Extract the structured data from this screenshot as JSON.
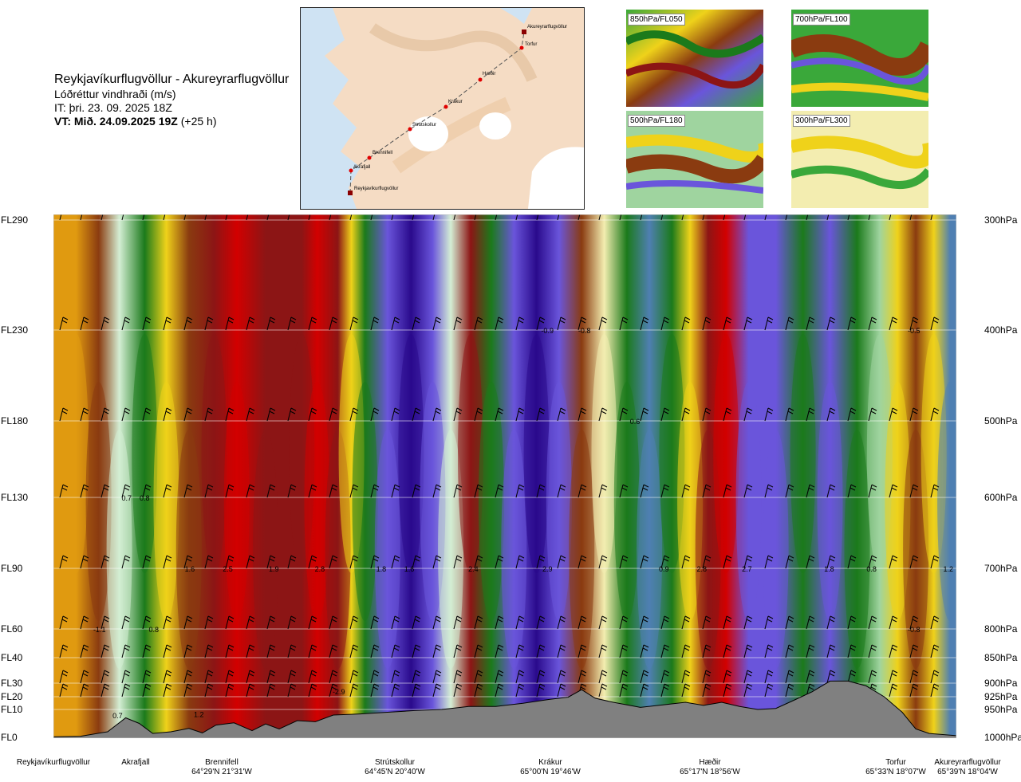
{
  "header": {
    "route": "Reykjavíkurflugvöllur - Akureyrarflugvöllur",
    "variable": "Lóðréttur vindhraði (m/s)",
    "issue_time": "IT: þri. 23. 09. 2025 18Z",
    "valid_prefix": "VT: Mið. 24.09.2025 19Z",
    "valid_suffix": "(+25 h)"
  },
  "map": {
    "stations": [
      "Akureyrarflugvöllur",
      "Torfur",
      "Hæðir",
      "Krákur",
      "Strútskollur",
      "Brennifell",
      "Akrafjall",
      "Reykjavíkurflugvöllur"
    ]
  },
  "thumbnails": [
    "850hPa/FL050",
    "700hPa/FL100",
    "500hPa/FL180",
    "300hPa/FL300"
  ],
  "colors": {
    "dark_navy": "#2a0a8c",
    "blue_violet": "#6a55db",
    "steel_blue": "#4f7fb2",
    "dark_green": "#1b7a1b",
    "green": "#3aa83a",
    "light_green": "#9fd49f",
    "pale_green": "#d4eed4",
    "pale_yellow": "#f3edb0",
    "yellow": "#efd21a",
    "orange": "#e09a10",
    "brown": "#8a3b10",
    "dark_red": "#8c1515",
    "red": "#d20000",
    "terrain": "#808080"
  },
  "chart_data": {
    "type": "heatmap",
    "title": "Lóðréttur vindhraði (m/s)",
    "left_axis_labels": [
      "FL290",
      "FL230",
      "FL180",
      "FL130",
      "FL90",
      "FL60",
      "FL40",
      "FL30",
      "FL20",
      "FL10",
      "FL0"
    ],
    "right_axis_labels": [
      "300hPa",
      "400hPa",
      "500hPa",
      "600hPa",
      "700hPa",
      "800hPa",
      "850hPa",
      "900hPa",
      "925hPa",
      "950hPa",
      "1000hPa"
    ],
    "levels_hpa": [
      300,
      400,
      500,
      600,
      700,
      800,
      850,
      900,
      925,
      950,
      1000
    ],
    "route_distance_range": [
      0,
      100
    ],
    "locations": [
      {
        "name": "Reykjavíkurflugvöllur",
        "coord": "",
        "pos": 0
      },
      {
        "name": "Akrafjall",
        "coord": "",
        "pos": 8.3
      },
      {
        "name": "Brennifell",
        "coord": "64°29'N 21°31'W",
        "pos": 19.6
      },
      {
        "name": "Strútskollur",
        "coord": "64°45'N 20°40'W",
        "pos": 37.5
      },
      {
        "name": "Krákur",
        "coord": "65°00'N 19°46'W",
        "pos": 57.4
      },
      {
        "name": "Hæðir",
        "coord": "65°17'N 18°56'W",
        "pos": 76.5
      },
      {
        "name": "Torfur",
        "coord": "65°33'N 18°07'W",
        "pos": 96.5
      },
      {
        "name": "Akureyrarflugvöllur",
        "coord": "65°39'N 18°04'W",
        "pos": 100
      }
    ],
    "annotations": [
      {
        "text": "-0.9",
        "pos": 54.7,
        "hpa": 400
      },
      {
        "text": "-0.8",
        "pos": 58.8,
        "hpa": 400
      },
      {
        "text": "-0.5",
        "pos": 95.3,
        "hpa": 400
      },
      {
        "text": "0.6",
        "pos": 64.4,
        "hpa": 500
      },
      {
        "text": "0.7",
        "pos": 8.1,
        "hpa": 600
      },
      {
        "text": "0.8",
        "pos": 10.1,
        "hpa": 600
      },
      {
        "text": "1.6",
        "pos": 15.1,
        "hpa": 700
      },
      {
        "text": "2.5",
        "pos": 19.3,
        "hpa": 700
      },
      {
        "text": "1.9",
        "pos": 24.4,
        "hpa": 700
      },
      {
        "text": "2.8",
        "pos": 29.5,
        "hpa": 700
      },
      {
        "text": "1.8",
        "pos": 36.3,
        "hpa": 700
      },
      {
        "text": "1.6",
        "pos": 39.4,
        "hpa": 700
      },
      {
        "text": "2.4",
        "pos": 46.5,
        "hpa": 700
      },
      {
        "text": "2.9",
        "pos": 54.7,
        "hpa": 700
      },
      {
        "text": "0.9",
        "pos": 67.6,
        "hpa": 700
      },
      {
        "text": "2.8",
        "pos": 71.8,
        "hpa": 700
      },
      {
        "text": "2.7",
        "pos": 76.8,
        "hpa": 700
      },
      {
        "text": "1.8",
        "pos": 85.9,
        "hpa": 700
      },
      {
        "text": "0.8",
        "pos": 90.6,
        "hpa": 700
      },
      {
        "text": "1.2",
        "pos": 99.1,
        "hpa": 700
      },
      {
        "text": "-1.1",
        "pos": 5.1,
        "hpa": 800
      },
      {
        "text": "0.8",
        "pos": 11.1,
        "hpa": 800
      },
      {
        "text": "-0.8",
        "pos": 95.3,
        "hpa": 800
      },
      {
        "text": "-2.9",
        "pos": 31.6,
        "hpa": 915
      },
      {
        "text": "0.7",
        "pos": 7.1,
        "hpa": 960
      },
      {
        "text": "1.2",
        "pos": 16.1,
        "hpa": 958
      }
    ],
    "color_bands": [
      {
        "pos": 2.5,
        "color": "#e09a10"
      },
      {
        "pos": 5.0,
        "color": "#8a3b10"
      },
      {
        "pos": 7.3,
        "color": "#d4eed4"
      },
      {
        "pos": 10.1,
        "color": "#1b7a1b"
      },
      {
        "pos": 12.5,
        "color": "#efd21a"
      },
      {
        "pos": 15.0,
        "color": "#8a3b10"
      },
      {
        "pos": 17.8,
        "color": "#8c1515"
      },
      {
        "pos": 20.3,
        "color": "#d20000"
      },
      {
        "pos": 23.5,
        "color": "#8c1515"
      },
      {
        "pos": 27.5,
        "color": "#8c1515"
      },
      {
        "pos": 29.2,
        "color": "#d20000"
      },
      {
        "pos": 31.5,
        "color": "#8c1515"
      },
      {
        "pos": 33.0,
        "color": "#efd21a"
      },
      {
        "pos": 34.5,
        "color": "#1b7a1b"
      },
      {
        "pos": 37.0,
        "color": "#6a55db"
      },
      {
        "pos": 39.6,
        "color": "#2a0a8c"
      },
      {
        "pos": 42.0,
        "color": "#6a55db"
      },
      {
        "pos": 44.0,
        "color": "#d4eed4"
      },
      {
        "pos": 46.2,
        "color": "#8c1515"
      },
      {
        "pos": 48.5,
        "color": "#1b7a1b"
      },
      {
        "pos": 51.0,
        "color": "#6a55db"
      },
      {
        "pos": 53.5,
        "color": "#2a0a8c"
      },
      {
        "pos": 56.0,
        "color": "#6a55db"
      },
      {
        "pos": 58.5,
        "color": "#8a3b10"
      },
      {
        "pos": 61.0,
        "color": "#f3edb0"
      },
      {
        "pos": 63.5,
        "color": "#1b7a1b"
      },
      {
        "pos": 66.0,
        "color": "#4f7fb2"
      },
      {
        "pos": 68.5,
        "color": "#1b7a1b"
      },
      {
        "pos": 70.5,
        "color": "#efd21a"
      },
      {
        "pos": 72.5,
        "color": "#8c1515"
      },
      {
        "pos": 74.5,
        "color": "#d20000"
      },
      {
        "pos": 77.0,
        "color": "#6a55db"
      },
      {
        "pos": 80.0,
        "color": "#6a55db"
      },
      {
        "pos": 83.0,
        "color": "#1b7a1b"
      },
      {
        "pos": 86.0,
        "color": "#6a55db"
      },
      {
        "pos": 89.0,
        "color": "#1b7a1b"
      },
      {
        "pos": 91.5,
        "color": "#9fd49f"
      },
      {
        "pos": 93.5,
        "color": "#efd21a"
      },
      {
        "pos": 95.5,
        "color": "#8a3b10"
      },
      {
        "pos": 97.5,
        "color": "#efd21a"
      },
      {
        "pos": 99.3,
        "color": "#4f7fb2"
      }
    ],
    "terrain_profile": [
      {
        "pos": 0,
        "hpa": 999
      },
      {
        "pos": 3,
        "hpa": 998
      },
      {
        "pos": 6,
        "hpa": 990
      },
      {
        "pos": 8,
        "hpa": 965
      },
      {
        "pos": 9.5,
        "hpa": 975
      },
      {
        "pos": 11,
        "hpa": 993
      },
      {
        "pos": 13,
        "hpa": 990
      },
      {
        "pos": 15,
        "hpa": 984
      },
      {
        "pos": 16.5,
        "hpa": 992
      },
      {
        "pos": 18,
        "hpa": 978
      },
      {
        "pos": 20,
        "hpa": 974
      },
      {
        "pos": 22,
        "hpa": 988
      },
      {
        "pos": 23.5,
        "hpa": 976
      },
      {
        "pos": 25,
        "hpa": 985
      },
      {
        "pos": 27,
        "hpa": 970
      },
      {
        "pos": 29,
        "hpa": 972
      },
      {
        "pos": 31,
        "hpa": 960
      },
      {
        "pos": 34,
        "hpa": 958
      },
      {
        "pos": 37,
        "hpa": 955
      },
      {
        "pos": 40,
        "hpa": 952
      },
      {
        "pos": 43,
        "hpa": 950
      },
      {
        "pos": 46,
        "hpa": 944
      },
      {
        "pos": 49,
        "hpa": 944
      },
      {
        "pos": 52,
        "hpa": 938
      },
      {
        "pos": 55,
        "hpa": 930
      },
      {
        "pos": 57,
        "hpa": 926
      },
      {
        "pos": 58.5,
        "hpa": 912
      },
      {
        "pos": 60,
        "hpa": 928
      },
      {
        "pos": 62,
        "hpa": 936
      },
      {
        "pos": 65,
        "hpa": 946
      },
      {
        "pos": 68,
        "hpa": 940
      },
      {
        "pos": 70,
        "hpa": 936
      },
      {
        "pos": 72,
        "hpa": 942
      },
      {
        "pos": 74,
        "hpa": 936
      },
      {
        "pos": 76,
        "hpa": 944
      },
      {
        "pos": 78,
        "hpa": 950
      },
      {
        "pos": 80,
        "hpa": 948
      },
      {
        "pos": 82,
        "hpa": 932
      },
      {
        "pos": 84,
        "hpa": 916
      },
      {
        "pos": 86,
        "hpa": 896
      },
      {
        "pos": 88,
        "hpa": 896
      },
      {
        "pos": 90,
        "hpa": 905
      },
      {
        "pos": 92,
        "hpa": 925
      },
      {
        "pos": 94,
        "hpa": 955
      },
      {
        "pos": 95.5,
        "hpa": 985
      },
      {
        "pos": 97,
        "hpa": 993
      },
      {
        "pos": 100,
        "hpa": 997
      }
    ]
  }
}
